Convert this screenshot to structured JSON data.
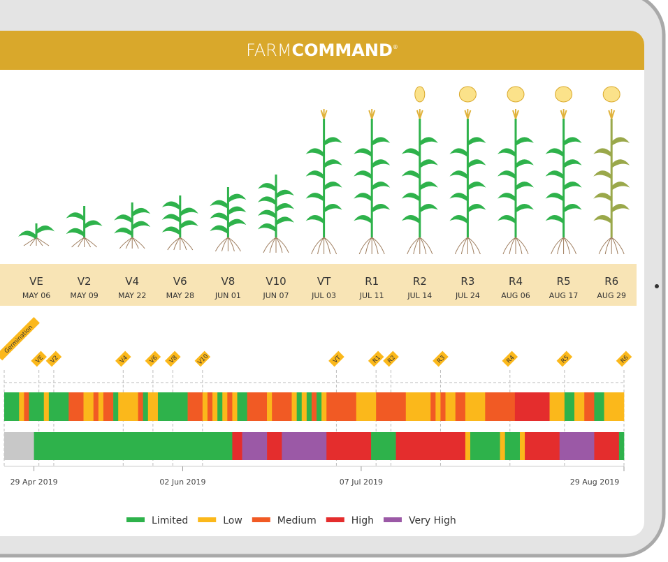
{
  "header": {
    "brand_light": "FARM",
    "brand_bold": "COMMAND",
    "brand_mark": "®"
  },
  "stages": [
    {
      "code": "VE",
      "date": "MAY 06"
    },
    {
      "code": "V2",
      "date": "MAY 09"
    },
    {
      "code": "V4",
      "date": "MAY 22"
    },
    {
      "code": "V6",
      "date": "MAY 28"
    },
    {
      "code": "V8",
      "date": "JUN 01"
    },
    {
      "code": "V10",
      "date": "JUN 07"
    },
    {
      "code": "VT",
      "date": "JUL 03"
    },
    {
      "code": "R1",
      "date": "JUL 11"
    },
    {
      "code": "R2",
      "date": "JUL 14"
    },
    {
      "code": "R3",
      "date": "JUL 24"
    },
    {
      "code": "R4",
      "date": "AUG 06"
    },
    {
      "code": "R5",
      "date": "AUG 17"
    },
    {
      "code": "R6",
      "date": "AUG 29"
    }
  ],
  "chart_data": {
    "type": "timeline",
    "xlim": [
      0,
      125
    ],
    "xticks": [
      {
        "value": 6,
        "label": "29 Apr 2019"
      },
      {
        "value": 36,
        "label": "02 Jun 2019"
      },
      {
        "value": 72,
        "label": "07 Jul 2019"
      },
      {
        "value": 125,
        "label": "29 Aug 2019"
      }
    ],
    "markers": {
      "labels": [
        "Germination",
        "VE",
        "V2",
        "V4",
        "V6",
        "V8",
        "V10",
        "VT",
        "R1",
        "R2",
        "R3",
        "R4",
        "R5",
        "R6"
      ],
      "x": [
        0,
        7,
        10,
        24,
        30,
        34,
        40,
        67,
        75,
        78,
        88,
        102,
        113,
        125
      ]
    },
    "levels": [
      {
        "name": "Limited",
        "color": "#2eb24b"
      },
      {
        "name": "Low",
        "color": "#fbb81b"
      },
      {
        "name": "Medium",
        "color": "#f15a24"
      },
      {
        "name": "High",
        "color": "#e42d2d"
      },
      {
        "name": "Very High",
        "color": "#9b59a6"
      }
    ],
    "rows": [
      {
        "levels": [
          0,
          1,
          2,
          0,
          1,
          0,
          2,
          1,
          2,
          1,
          2,
          0,
          1,
          2,
          0,
          1,
          0,
          2,
          1,
          2,
          1,
          0,
          1,
          2,
          1,
          0,
          2,
          1,
          2,
          1,
          0,
          1,
          0,
          2,
          0,
          1,
          2,
          2,
          1,
          2,
          1,
          2,
          1,
          2,
          1,
          2,
          1,
          2,
          3,
          1,
          0,
          1,
          2,
          0,
          1
        ],
        "days": [
          3,
          1,
          1,
          3,
          1,
          4,
          3,
          2,
          1,
          1,
          2,
          1,
          4,
          1,
          1,
          2,
          6,
          3,
          1,
          1,
          1,
          1,
          1,
          1,
          1,
          2,
          4,
          1,
          4,
          1,
          1,
          1,
          1,
          1,
          1,
          1,
          2,
          4,
          4,
          6,
          5,
          1,
          1,
          1,
          2,
          2,
          4,
          6,
          7,
          3,
          2,
          2,
          2,
          2,
          4
        ]
      },
      {
        "levels": [
          null,
          0,
          3,
          4,
          3,
          4,
          3,
          0,
          3,
          1,
          0,
          1,
          0,
          1,
          3,
          4,
          3,
          0
        ],
        "days": [
          6,
          40,
          2,
          5,
          3,
          9,
          9,
          5,
          14,
          1,
          6,
          1,
          3,
          1,
          7,
          7,
          5,
          1
        ]
      }
    ]
  }
}
